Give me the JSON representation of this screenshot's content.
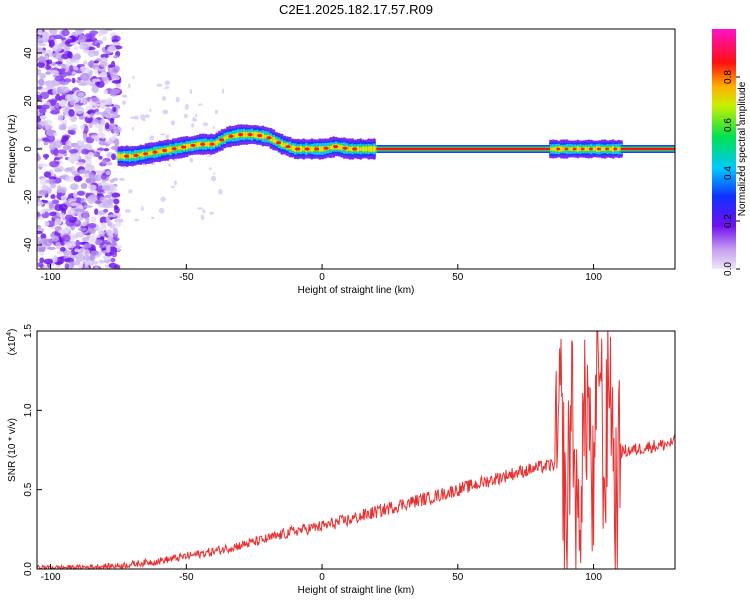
{
  "chart_data": [
    {
      "type": "heatmap",
      "title": "C2E1.2025.182.17.57.R09",
      "xlabel": "Height of straight line (km)",
      "ylabel": "Frequency (Hz)",
      "xlim": [
        -105,
        130
      ],
      "ylim": [
        -50,
        50
      ],
      "xticks": [
        "-100",
        "-50",
        "0",
        "50",
        "100"
      ],
      "yticks": [
        "40",
        "20",
        "0",
        "-20",
        "-40"
      ],
      "grid": false,
      "colorbar": {
        "label": "Normalized spectral amplitude",
        "range": [
          0,
          1
        ],
        "ticks": [
          "0.0",
          "0.2",
          "0.4",
          "0.6",
          "0.8"
        ],
        "colors": [
          "#e8e0f8",
          "#7010f0",
          "#1030ff",
          "#00c8ff",
          "#00e050",
          "#ffe000",
          "#ff8000",
          "#ff0000",
          "#ff00c0"
        ]
      },
      "ridge": {
        "height_km": [
          -75,
          -70,
          -65,
          -60,
          -55,
          -50,
          -45,
          -40,
          -35,
          -30,
          -25,
          -20,
          -15,
          -10,
          -5,
          0,
          5,
          10,
          20,
          50,
          85,
          90,
          95,
          100,
          105,
          110,
          130
        ],
        "frequency_hz": [
          -3,
          -3,
          -2,
          -1,
          0,
          1,
          2,
          2,
          5,
          6,
          6,
          5,
          2,
          0,
          0,
          0,
          1,
          0,
          0,
          0,
          0,
          0,
          0,
          0,
          0,
          0,
          0
        ]
      },
      "noise_region_km": [
        -105,
        -75
      ]
    },
    {
      "type": "line",
      "xlabel": "Height of straight line (km)",
      "ylabel": "SNR (10 * v/v)",
      "y_multiplier": "(x10",
      "y_multiplier_exp": "4",
      "xlim": [
        -105,
        130
      ],
      "ylim": [
        0,
        1.5
      ],
      "xticks": [
        "-100",
        "-50",
        "0",
        "50",
        "100"
      ],
      "yticks": [
        "0.0",
        "0.5",
        "1.0",
        "1.5"
      ],
      "grid": false,
      "series": [
        {
          "color": "#e83030",
          "x": [
            -105,
            -90,
            -75,
            -60,
            -50,
            -40,
            -30,
            -20,
            -10,
            0,
            10,
            20,
            30,
            40,
            50,
            60,
            70,
            80,
            86,
            88,
            90,
            92,
            94,
            96,
            98,
            100,
            102,
            104,
            106,
            108,
            110,
            115,
            120,
            125,
            130
          ],
          "y": [
            0.01,
            0.01,
            0.02,
            0.05,
            0.08,
            0.11,
            0.15,
            0.19,
            0.24,
            0.27,
            0.31,
            0.36,
            0.41,
            0.45,
            0.5,
            0.55,
            0.6,
            0.64,
            0.66,
            1.0,
            0.2,
            1.2,
            0.1,
            0.8,
            1.1,
            0.3,
            1.5,
            0.5,
            1.35,
            0.4,
            0.74,
            0.75,
            0.77,
            0.78,
            0.8
          ]
        }
      ]
    }
  ]
}
